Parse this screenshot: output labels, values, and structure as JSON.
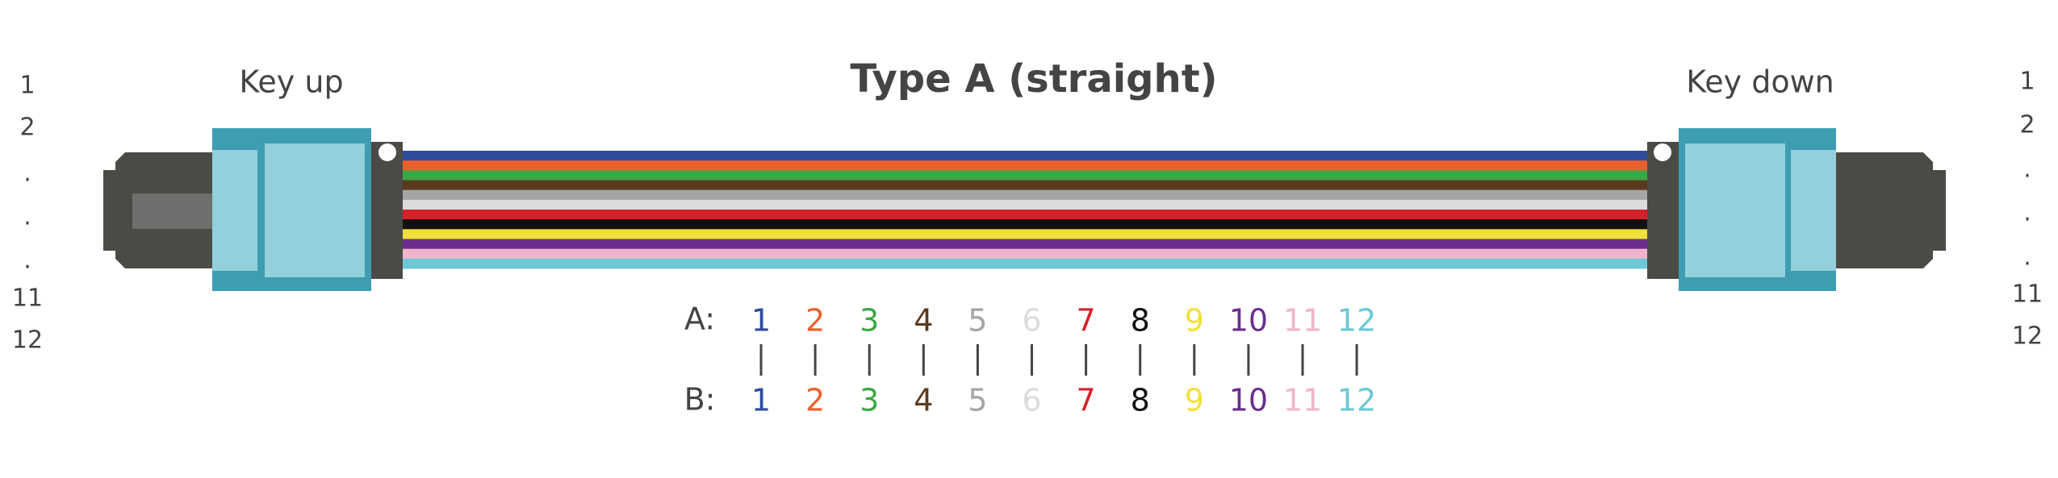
{
  "header": {
    "title": "Type A (straight)"
  },
  "left": {
    "label": "Key up",
    "pins": [
      "1",
      "2",
      ".",
      ".",
      ".",
      "11",
      "12"
    ]
  },
  "right": {
    "label": "Key down",
    "pins": [
      "1",
      "2",
      ".",
      ".",
      ".",
      "11",
      "12"
    ]
  },
  "mapping": {
    "a_label": "A:",
    "b_label": "B:",
    "fibers": [
      {
        "a": "1",
        "b": "1",
        "color": "#2f4b9c"
      },
      {
        "a": "2",
        "b": "2",
        "color": "#e8602c"
      },
      {
        "a": "3",
        "b": "3",
        "color": "#3aa845"
      },
      {
        "a": "4",
        "b": "4",
        "color": "#5a3a1e"
      },
      {
        "a": "5",
        "b": "5",
        "color": "#a5a5a5"
      },
      {
        "a": "6",
        "b": "6",
        "color": "#dcdcdc"
      },
      {
        "a": "7",
        "b": "7",
        "color": "#d7202a"
      },
      {
        "a": "8",
        "b": "8",
        "color": "#111111"
      },
      {
        "a": "9",
        "b": "9",
        "color": "#f2e03a"
      },
      {
        "a": "10",
        "b": "10",
        "color": "#6a2d8e"
      },
      {
        "a": "11",
        "b": "11",
        "color": "#f0b5cc"
      },
      {
        "a": "12",
        "b": "12",
        "color": "#6cc8d6"
      }
    ]
  }
}
